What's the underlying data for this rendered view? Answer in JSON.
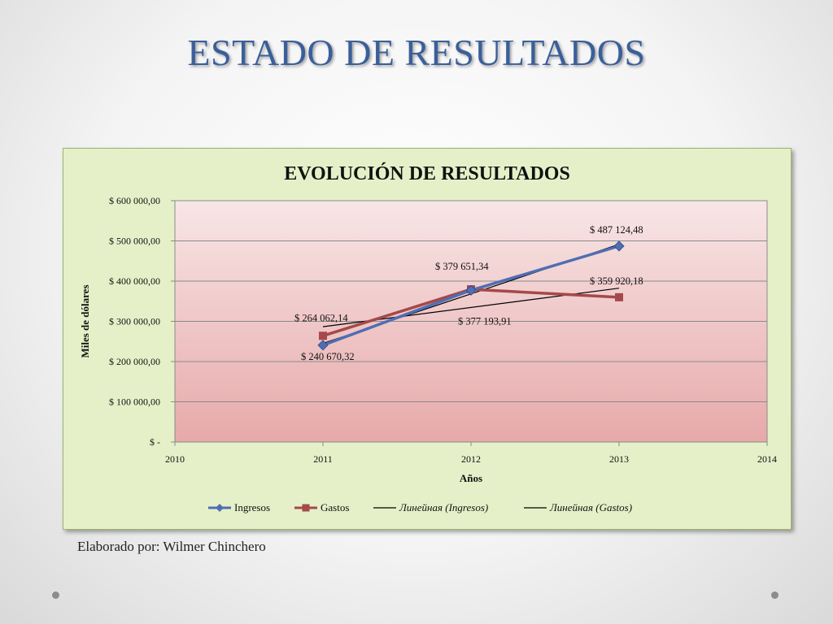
{
  "slide": {
    "title": "ESTADO DE RESULTADOS",
    "credit": "Elaborado por: Wilmer Chinchero"
  },
  "chart_data": {
    "type": "line",
    "title": "EVOLUCIÓN DE RESULTADOS",
    "xlabel": "Años",
    "ylabel": "Miles de dólares",
    "xlim": [
      2010,
      2014
    ],
    "ylim": [
      0,
      600000
    ],
    "x_ticks": [
      "2010",
      "2011",
      "2012",
      "2013",
      "2014"
    ],
    "y_ticks": [
      "$ -",
      "$ 100 000,00",
      "$ 200 000,00",
      "$ 300 000,00",
      "$ 400 000,00",
      "$ 500 000,00",
      "$ 600 000,00"
    ],
    "grid": true,
    "legend_position": "bottom",
    "colors": {
      "ingresos": "#4f6eb3",
      "gastos": "#a5494a",
      "trend": "#000000",
      "plot_top": "#f8e6e6",
      "plot_bottom": "#e7a9aa",
      "outer": "#e6f0c8"
    },
    "series": [
      {
        "name": "Ingresos",
        "x": [
          2011,
          2012,
          2013
        ],
        "values": [
          240670.32,
          377193.91,
          487124.48
        ]
      },
      {
        "name": "Gastos",
        "x": [
          2011,
          2012,
          2013
        ],
        "values": [
          264062.14,
          379651.34,
          359920.18
        ]
      },
      {
        "name": "Линейная (Ingresos)",
        "trend_of": "Ingresos"
      },
      {
        "name": "Линейная (Gastos)",
        "trend_of": "Gastos"
      }
    ],
    "data_labels": [
      "$ 240 670,32",
      "$ 377 193,91",
      "$ 487 124,48",
      "$ 264 062,14",
      "$ 379 651,34",
      "$ 359 920,18"
    ]
  }
}
